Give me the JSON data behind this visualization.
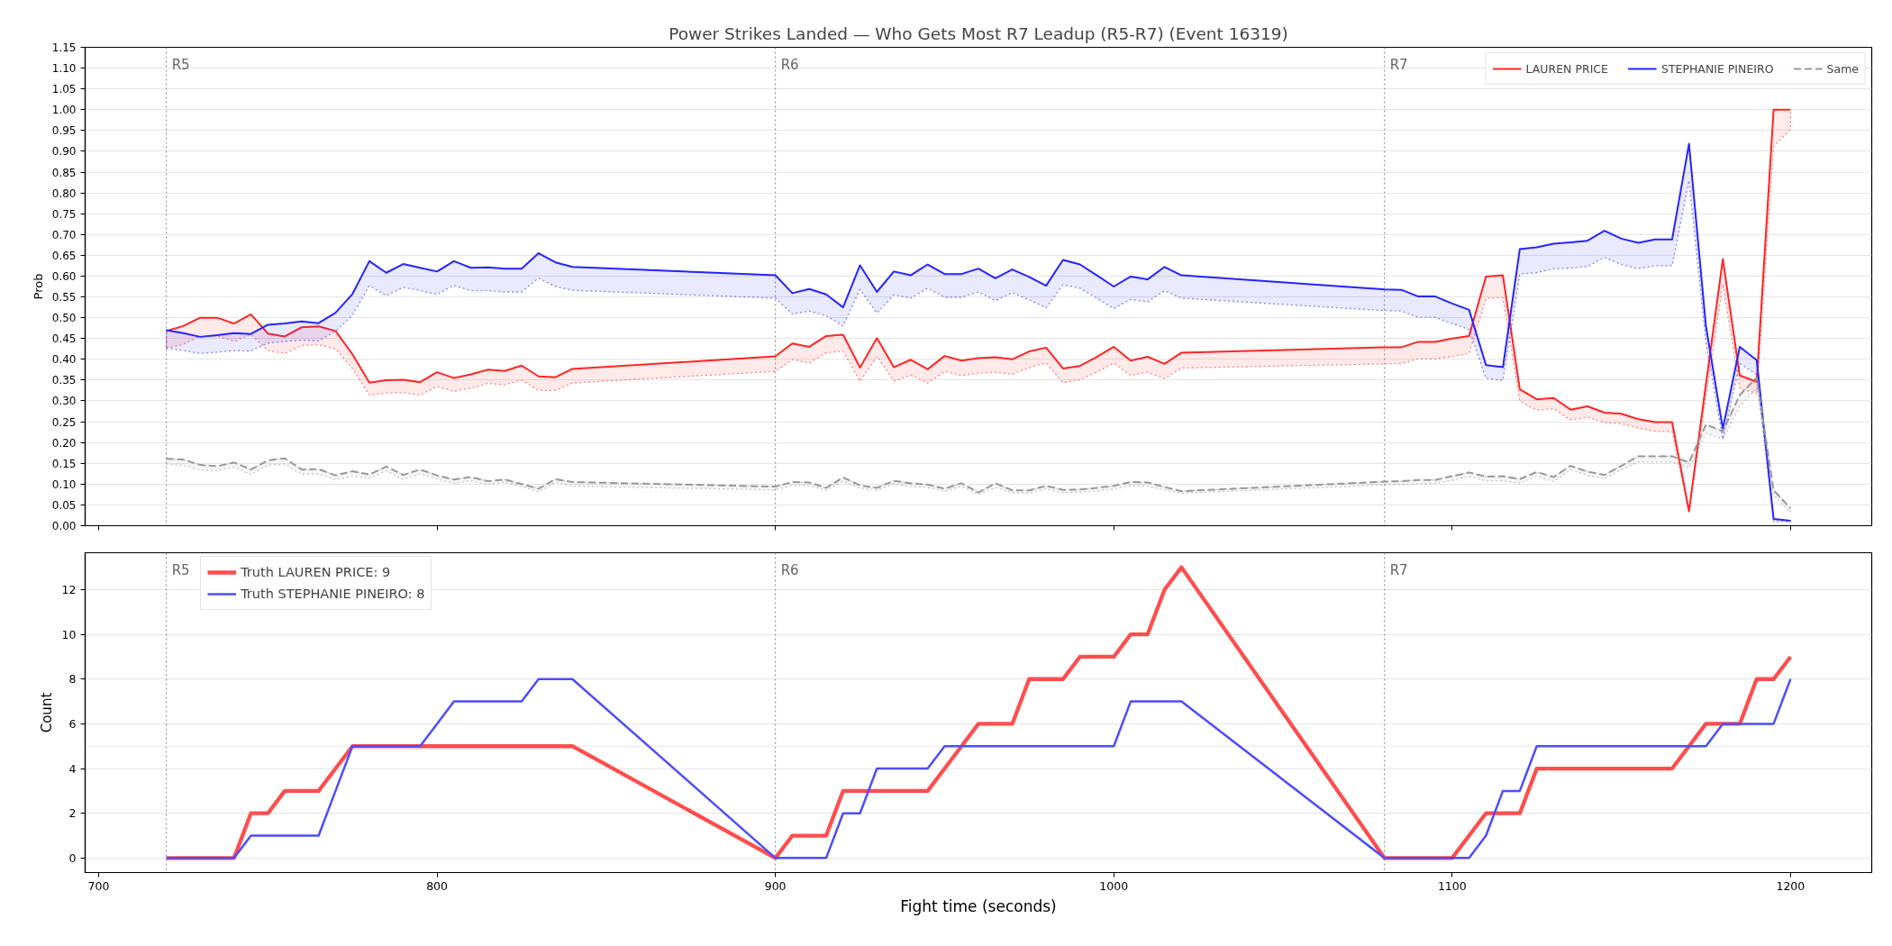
{
  "chart_data": [
    {
      "type": "line",
      "title": "Power Strikes Landed — Who Gets Most R7 Leadup (R5-R7) (Event 16319)",
      "ylabel": "Prob",
      "x": [
        720,
        725,
        730,
        735,
        740,
        745,
        750,
        755,
        760,
        765,
        770,
        775,
        780,
        785,
        790,
        795,
        800,
        805,
        810,
        815,
        820,
        825,
        830,
        835,
        840,
        900,
        905,
        910,
        915,
        920,
        925,
        930,
        935,
        940,
        945,
        950,
        955,
        960,
        965,
        970,
        975,
        980,
        985,
        990,
        995,
        1000,
        1005,
        1010,
        1015,
        1020,
        1080,
        1085,
        1090,
        1095,
        1100,
        1105,
        1110,
        1115,
        1120,
        1125,
        1130,
        1135,
        1140,
        1145,
        1150,
        1155,
        1160,
        1165,
        1170,
        1175,
        1180,
        1185,
        1190,
        1195,
        1200
      ],
      "xlim": [
        696,
        1224
      ],
      "xticks": [
        700,
        800,
        900,
        1000,
        1100,
        1200
      ],
      "ylim": [
        0,
        1.15
      ],
      "yticks": [
        {
          "value": 0,
          "label": "0.00"
        },
        {
          "value": 0.05,
          "label": "0.05"
        },
        {
          "value": 0.1,
          "label": "0.10"
        },
        {
          "value": 0.15,
          "label": "0.15"
        },
        {
          "value": 0.2,
          "label": "0.20"
        },
        {
          "value": 0.25,
          "label": "0.25"
        },
        {
          "value": 0.3,
          "label": "0.30"
        },
        {
          "value": 0.35,
          "label": "0.35"
        },
        {
          "value": 0.4,
          "label": "0.40"
        },
        {
          "value": 0.45,
          "label": "0.45"
        },
        {
          "value": 0.5,
          "label": "0.50"
        },
        {
          "value": 0.55,
          "label": "0.55"
        },
        {
          "value": 0.6,
          "label": "0.60"
        },
        {
          "value": 0.65,
          "label": "0.65"
        },
        {
          "value": 0.7,
          "label": "0.70"
        },
        {
          "value": 0.75,
          "label": "0.75"
        },
        {
          "value": 0.8,
          "label": "0.80"
        },
        {
          "value": 0.85,
          "label": "0.85"
        },
        {
          "value": 0.9,
          "label": "0.90"
        },
        {
          "value": 0.95,
          "label": "0.95"
        },
        {
          "value": 1.0,
          "label": "1.00"
        },
        {
          "value": 1.05,
          "label": "1.05"
        },
        {
          "value": 1.1,
          "label": "1.10"
        },
        {
          "value": 1.15,
          "label": "1.15"
        }
      ],
      "tick_labels": "y",
      "grid": "y",
      "legend": "top right",
      "line_style": "solid",
      "ref_lines": [
        {
          "axis": "x",
          "value": 720,
          "label": "R5",
          "color": "#808080",
          "line_style": "dotted"
        },
        {
          "axis": "x",
          "value": 900,
          "label": "R6",
          "color": "#808080",
          "line_style": "dotted"
        },
        {
          "axis": "x",
          "value": 1080,
          "label": "R7",
          "color": "#808080",
          "line_style": "dotted"
        }
      ],
      "series": [
        {
          "name": "LAUREN PRICE",
          "color": "#ff2626",
          "values": [
            0.468,
            0.48,
            0.5,
            0.5,
            0.486,
            0.508,
            0.462,
            0.455,
            0.477,
            0.479,
            0.468,
            0.412,
            0.344,
            0.35,
            0.351,
            0.345,
            0.369,
            0.355,
            0.364,
            0.375,
            0.372,
            0.385,
            0.359,
            0.357,
            0.377,
            0.407,
            0.438,
            0.43,
            0.456,
            0.459,
            0.38,
            0.451,
            0.381,
            0.399,
            0.376,
            0.408,
            0.397,
            0.403,
            0.405,
            0.4,
            0.419,
            0.428,
            0.378,
            0.384,
            0.406,
            0.43,
            0.397,
            0.406,
            0.389,
            0.416,
            0.429,
            0.429,
            0.442,
            0.442,
            0.45,
            0.456,
            0.599,
            0.602,
            0.328,
            0.304,
            0.307,
            0.279,
            0.287,
            0.272,
            0.269,
            0.256,
            0.249,
            0.249,
            0.035,
            0.34,
            0.641,
            0.361,
            0.346,
            1.0,
            1.0
          ],
          "lower": [
            0.427,
            0.436,
            0.455,
            0.456,
            0.443,
            0.46,
            0.421,
            0.414,
            0.433,
            0.435,
            0.425,
            0.378,
            0.314,
            0.319,
            0.32,
            0.314,
            0.335,
            0.323,
            0.331,
            0.342,
            0.339,
            0.35,
            0.325,
            0.325,
            0.343,
            0.371,
            0.399,
            0.391,
            0.416,
            0.419,
            0.347,
            0.407,
            0.348,
            0.362,
            0.343,
            0.371,
            0.361,
            0.367,
            0.369,
            0.364,
            0.38,
            0.391,
            0.344,
            0.351,
            0.369,
            0.391,
            0.361,
            0.369,
            0.354,
            0.379,
            0.389,
            0.39,
            0.401,
            0.401,
            0.407,
            0.414,
            0.546,
            0.548,
            0.299,
            0.278,
            0.281,
            0.254,
            0.261,
            0.248,
            0.245,
            0.235,
            0.227,
            0.226,
            0.03,
            0.31,
            0.58,
            0.33,
            0.318,
            0.912,
            0.953
          ],
          "upper": [
            0.468,
            0.48,
            0.5,
            0.5,
            0.486,
            0.508,
            0.462,
            0.455,
            0.477,
            0.479,
            0.468,
            0.412,
            0.344,
            0.35,
            0.351,
            0.345,
            0.369,
            0.355,
            0.364,
            0.375,
            0.372,
            0.385,
            0.359,
            0.357,
            0.377,
            0.407,
            0.438,
            0.43,
            0.456,
            0.459,
            0.38,
            0.451,
            0.381,
            0.399,
            0.376,
            0.408,
            0.397,
            0.403,
            0.405,
            0.4,
            0.419,
            0.428,
            0.378,
            0.384,
            0.406,
            0.43,
            0.397,
            0.406,
            0.389,
            0.416,
            0.429,
            0.429,
            0.442,
            0.442,
            0.45,
            0.456,
            0.599,
            0.602,
            0.328,
            0.304,
            0.307,
            0.279,
            0.287,
            0.272,
            0.269,
            0.256,
            0.249,
            0.249,
            0.035,
            0.34,
            0.641,
            0.361,
            0.346,
            1.0,
            1.0
          ]
        },
        {
          "name": "STEPHANIE PINEIRO",
          "color": "#2626ff",
          "values": [
            0.47,
            0.463,
            0.454,
            0.458,
            0.463,
            0.461,
            0.483,
            0.486,
            0.491,
            0.487,
            0.512,
            0.557,
            0.636,
            0.608,
            0.629,
            0.62,
            0.611,
            0.636,
            0.62,
            0.621,
            0.618,
            0.618,
            0.655,
            0.633,
            0.622,
            0.602,
            0.559,
            0.569,
            0.556,
            0.525,
            0.626,
            0.562,
            0.611,
            0.602,
            0.628,
            0.605,
            0.605,
            0.618,
            0.595,
            0.616,
            0.598,
            0.577,
            0.639,
            0.628,
            0.602,
            0.575,
            0.599,
            0.592,
            0.622,
            0.602,
            0.568,
            0.567,
            0.551,
            0.551,
            0.534,
            0.519,
            0.386,
            0.381,
            0.665,
            0.669,
            0.678,
            0.681,
            0.685,
            0.709,
            0.69,
            0.68,
            0.688,
            0.688,
            0.918,
            0.48,
            0.233,
            0.43,
            0.398,
            0.016,
            0.012
          ],
          "lower": [
            0.427,
            0.421,
            0.414,
            0.417,
            0.421,
            0.42,
            0.439,
            0.443,
            0.446,
            0.444,
            0.467,
            0.506,
            0.577,
            0.553,
            0.573,
            0.565,
            0.556,
            0.578,
            0.565,
            0.565,
            0.562,
            0.562,
            0.595,
            0.575,
            0.566,
            0.547,
            0.509,
            0.516,
            0.505,
            0.48,
            0.568,
            0.511,
            0.555,
            0.547,
            0.571,
            0.549,
            0.549,
            0.562,
            0.541,
            0.56,
            0.543,
            0.524,
            0.579,
            0.571,
            0.547,
            0.522,
            0.544,
            0.538,
            0.565,
            0.547,
            0.517,
            0.516,
            0.501,
            0.501,
            0.486,
            0.472,
            0.354,
            0.349,
            0.605,
            0.608,
            0.618,
            0.619,
            0.623,
            0.645,
            0.628,
            0.618,
            0.625,
            0.625,
            0.83,
            0.44,
            0.208,
            0.39,
            0.363,
            0.01,
            0.01
          ],
          "upper": [
            0.47,
            0.463,
            0.454,
            0.458,
            0.463,
            0.461,
            0.483,
            0.486,
            0.491,
            0.487,
            0.512,
            0.557,
            0.636,
            0.608,
            0.629,
            0.62,
            0.611,
            0.636,
            0.62,
            0.621,
            0.618,
            0.618,
            0.655,
            0.633,
            0.622,
            0.602,
            0.559,
            0.569,
            0.556,
            0.525,
            0.626,
            0.562,
            0.611,
            0.602,
            0.628,
            0.605,
            0.605,
            0.618,
            0.595,
            0.616,
            0.598,
            0.577,
            0.639,
            0.628,
            0.602,
            0.575,
            0.599,
            0.592,
            0.622,
            0.602,
            0.568,
            0.567,
            0.551,
            0.551,
            0.534,
            0.519,
            0.386,
            0.381,
            0.665,
            0.669,
            0.678,
            0.681,
            0.685,
            0.709,
            0.69,
            0.68,
            0.688,
            0.688,
            0.918,
            0.48,
            0.233,
            0.43,
            0.398,
            0.016,
            0.012
          ]
        },
        {
          "name": "Same",
          "color": "#999999",
          "line_style": "dashed",
          "values": [
            0.161,
            0.159,
            0.146,
            0.143,
            0.152,
            0.135,
            0.157,
            0.162,
            0.135,
            0.136,
            0.121,
            0.131,
            0.123,
            0.142,
            0.122,
            0.135,
            0.121,
            0.111,
            0.117,
            0.107,
            0.111,
            0.1,
            0.089,
            0.112,
            0.105,
            0.094,
            0.105,
            0.104,
            0.091,
            0.116,
            0.097,
            0.091,
            0.108,
            0.102,
            0.099,
            0.089,
            0.102,
            0.08,
            0.102,
            0.085,
            0.085,
            0.096,
            0.086,
            0.087,
            0.091,
            0.096,
            0.105,
            0.104,
            0.093,
            0.083,
            0.106,
            0.107,
            0.11,
            0.11,
            0.119,
            0.128,
            0.118,
            0.119,
            0.112,
            0.129,
            0.117,
            0.144,
            0.13,
            0.122,
            0.144,
            0.167,
            0.167,
            0.167,
            0.152,
            0.243,
            0.227,
            0.314,
            0.356,
            0.085,
            0.042
          ],
          "lower": [
            0.148,
            0.145,
            0.134,
            0.132,
            0.141,
            0.123,
            0.145,
            0.148,
            0.124,
            0.124,
            0.111,
            0.119,
            0.114,
            0.132,
            0.111,
            0.125,
            0.112,
            0.102,
            0.108,
            0.099,
            0.105,
            0.094,
            0.081,
            0.104,
            0.095,
            0.086,
            0.097,
            0.096,
            0.085,
            0.107,
            0.09,
            0.085,
            0.1,
            0.094,
            0.092,
            0.083,
            0.095,
            0.075,
            0.092,
            0.079,
            0.079,
            0.088,
            0.079,
            0.081,
            0.083,
            0.088,
            0.096,
            0.095,
            0.086,
            0.078,
            0.098,
            0.098,
            0.101,
            0.101,
            0.109,
            0.118,
            0.108,
            0.108,
            0.102,
            0.119,
            0.106,
            0.134,
            0.12,
            0.113,
            0.135,
            0.153,
            0.153,
            0.153,
            0.139,
            0.222,
            0.208,
            0.287,
            0.329,
            0.074,
            0.032
          ],
          "upper": [
            0.161,
            0.159,
            0.146,
            0.143,
            0.152,
            0.135,
            0.157,
            0.162,
            0.135,
            0.136,
            0.121,
            0.131,
            0.123,
            0.142,
            0.122,
            0.135,
            0.121,
            0.111,
            0.117,
            0.107,
            0.111,
            0.1,
            0.089,
            0.112,
            0.105,
            0.094,
            0.105,
            0.104,
            0.091,
            0.116,
            0.097,
            0.091,
            0.108,
            0.102,
            0.099,
            0.089,
            0.102,
            0.08,
            0.102,
            0.085,
            0.085,
            0.096,
            0.086,
            0.087,
            0.091,
            0.096,
            0.105,
            0.104,
            0.093,
            0.083,
            0.106,
            0.107,
            0.11,
            0.11,
            0.119,
            0.128,
            0.118,
            0.119,
            0.112,
            0.129,
            0.117,
            0.144,
            0.13,
            0.122,
            0.144,
            0.167,
            0.167,
            0.167,
            0.152,
            0.243,
            0.227,
            0.314,
            0.356,
            0.085,
            0.042
          ]
        }
      ]
    },
    {
      "type": "line",
      "xlabel": "Fight time (seconds)",
      "ylabel": "Count",
      "x": [
        720,
        725,
        730,
        735,
        740,
        745,
        750,
        755,
        760,
        765,
        770,
        775,
        780,
        785,
        790,
        795,
        800,
        805,
        810,
        815,
        820,
        825,
        830,
        835,
        840,
        900,
        905,
        910,
        915,
        920,
        925,
        930,
        935,
        940,
        945,
        950,
        955,
        960,
        965,
        970,
        975,
        980,
        985,
        990,
        995,
        1000,
        1005,
        1010,
        1015,
        1020,
        1080,
        1085,
        1090,
        1095,
        1100,
        1105,
        1110,
        1115,
        1120,
        1125,
        1130,
        1135,
        1140,
        1145,
        1150,
        1155,
        1160,
        1165,
        1170,
        1175,
        1180,
        1185,
        1190,
        1195,
        1200
      ],
      "xlim": [
        696,
        1224
      ],
      "xticks": [
        700,
        800,
        900,
        1000,
        1100,
        1200
      ],
      "ylim": [
        -0.65,
        13.65
      ],
      "yticks": [
        0,
        2,
        4,
        6,
        8,
        10,
        12
      ],
      "grid": "y",
      "legend": "top left",
      "line_style": "solid",
      "ref_lines": [
        {
          "axis": "x",
          "value": 720,
          "label": "R5",
          "color": "#808080",
          "line_style": "dotted"
        },
        {
          "axis": "x",
          "value": 900,
          "label": "R6",
          "color": "#808080",
          "line_style": "dotted"
        },
        {
          "axis": "x",
          "value": 1080,
          "label": "R7",
          "color": "#808080",
          "line_style": "dotted"
        },
        {
          "axis": "y",
          "value": 5,
          "color": "#e5e5e5",
          "line_style": "solid"
        }
      ],
      "series": [
        {
          "name": "Truth LAUREN PRICE: 9",
          "color": "#ff4d4d",
          "values": [
            0,
            0,
            0,
            0,
            0,
            2,
            2,
            3,
            3,
            3,
            4,
            5,
            5,
            5,
            5,
            5,
            5,
            5,
            5,
            5,
            5,
            5,
            5,
            5,
            5,
            0,
            1,
            1,
            1,
            3,
            3,
            3,
            3,
            3,
            3,
            4,
            5,
            6,
            6,
            6,
            8,
            8,
            8,
            9,
            9,
            9,
            10,
            10,
            12,
            13,
            0,
            0,
            0,
            0,
            0,
            1,
            2,
            2,
            2,
            4,
            4,
            4,
            4,
            4,
            4,
            4,
            4,
            4,
            5,
            6,
            6,
            6,
            8,
            8,
            9
          ]
        },
        {
          "name": "Truth STEPHANIE PINEIRO: 8",
          "color": "#4d4dff",
          "values": [
            0,
            0,
            0,
            0,
            0,
            1,
            1,
            1,
            1,
            1,
            3,
            5,
            5,
            5,
            5,
            5,
            6,
            7,
            7,
            7,
            7,
            7,
            8,
            8,
            8,
            0,
            0,
            0,
            0,
            2,
            2,
            4,
            4,
            4,
            4,
            5,
            5,
            5,
            5,
            5,
            5,
            5,
            5,
            5,
            5,
            5,
            7,
            7,
            7,
            7,
            0,
            0,
            0,
            0,
            0,
            0,
            1,
            3,
            3,
            5,
            5,
            5,
            5,
            5,
            5,
            5,
            5,
            5,
            5,
            5,
            6,
            6,
            6,
            6,
            8
          ]
        }
      ]
    }
  ]
}
